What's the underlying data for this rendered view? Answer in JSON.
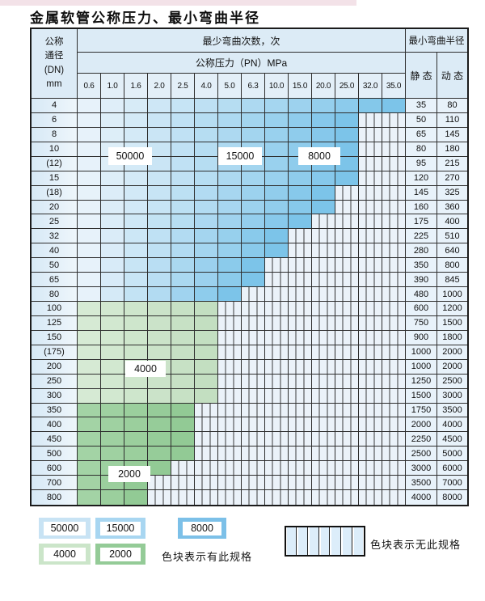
{
  "title": "金属软管公称压力、最小弯曲半径",
  "table": {
    "header": {
      "dn_lines": [
        "公称",
        "通径",
        "(DN)",
        "mm"
      ],
      "bend_cycles_label": "最少弯曲次数，次",
      "pressure_label": "公称压力（PN）MPa",
      "radius_label": "最小弯曲半径",
      "static_label": "静 态",
      "dynamic_label": "动 态",
      "pressures": [
        "0.6",
        "1.0",
        "1.6",
        "2.0",
        "2.5",
        "4.0",
        "5.0",
        "6.3",
        "10.0",
        "15.0",
        "20.0",
        "25.0",
        "32.0",
        "35.0"
      ]
    },
    "rows": [
      {
        "dn": "4",
        "max_pn": "35.0",
        "band": "blue",
        "static": "35",
        "dynamic": "80"
      },
      {
        "dn": "6",
        "max_pn": "25.0",
        "band": "blue",
        "static": "50",
        "dynamic": "110"
      },
      {
        "dn": "8",
        "max_pn": "25.0",
        "band": "blue",
        "static": "65",
        "dynamic": "145"
      },
      {
        "dn": "10",
        "max_pn": "25.0",
        "band": "blue",
        "static": "80",
        "dynamic": "180"
      },
      {
        "dn": "(12)",
        "max_pn": "25.0",
        "band": "blue",
        "static": "95",
        "dynamic": "215"
      },
      {
        "dn": "15",
        "max_pn": "25.0",
        "band": "blue",
        "static": "120",
        "dynamic": "270"
      },
      {
        "dn": "(18)",
        "max_pn": "20.0",
        "band": "blue",
        "static": "145",
        "dynamic": "325"
      },
      {
        "dn": "20",
        "max_pn": "20.0",
        "band": "blue",
        "static": "160",
        "dynamic": "360"
      },
      {
        "dn": "25",
        "max_pn": "15.0",
        "band": "blue",
        "static": "175",
        "dynamic": "400"
      },
      {
        "dn": "32",
        "max_pn": "10.0",
        "band": "blue",
        "static": "225",
        "dynamic": "510"
      },
      {
        "dn": "40",
        "max_pn": "10.0",
        "band": "blue",
        "static": "280",
        "dynamic": "640"
      },
      {
        "dn": "50",
        "max_pn": "6.3",
        "band": "blue",
        "static": "350",
        "dynamic": "800"
      },
      {
        "dn": "65",
        "max_pn": "6.3",
        "band": "blue",
        "static": "390",
        "dynamic": "845"
      },
      {
        "dn": "80",
        "max_pn": "5.0",
        "band": "blue",
        "static": "480",
        "dynamic": "1000"
      },
      {
        "dn": "100",
        "max_pn": "4.0",
        "band": "green4000",
        "static": "600",
        "dynamic": "1200"
      },
      {
        "dn": "125",
        "max_pn": "4.0",
        "band": "green4000",
        "static": "750",
        "dynamic": "1500"
      },
      {
        "dn": "150",
        "max_pn": "4.0",
        "band": "green4000",
        "static": "900",
        "dynamic": "1800"
      },
      {
        "dn": "(175)",
        "max_pn": "4.0",
        "band": "green4000",
        "static": "1000",
        "dynamic": "2000"
      },
      {
        "dn": "200",
        "max_pn": "4.0",
        "band": "green4000",
        "static": "1000",
        "dynamic": "2000"
      },
      {
        "dn": "250",
        "max_pn": "4.0",
        "band": "green4000",
        "static": "1250",
        "dynamic": "2500"
      },
      {
        "dn": "300",
        "max_pn": "4.0",
        "band": "green4000",
        "static": "1500",
        "dynamic": "3000"
      },
      {
        "dn": "350",
        "max_pn": "2.5",
        "band": "green2000",
        "static": "1750",
        "dynamic": "3500"
      },
      {
        "dn": "400",
        "max_pn": "2.5",
        "band": "green2000",
        "static": "2000",
        "dynamic": "4000"
      },
      {
        "dn": "450",
        "max_pn": "2.5",
        "band": "green2000",
        "static": "2250",
        "dynamic": "4500"
      },
      {
        "dn": "500",
        "max_pn": "2.5",
        "band": "green2000",
        "static": "2500",
        "dynamic": "5000"
      },
      {
        "dn": "600",
        "max_pn": "2.0",
        "band": "green2000",
        "static": "3000",
        "dynamic": "6000"
      },
      {
        "dn": "700",
        "max_pn": "1.6",
        "band": "green2000",
        "static": "3500",
        "dynamic": "7000"
      },
      {
        "dn": "800",
        "max_pn": "1.6",
        "band": "green2000",
        "static": "4000",
        "dynamic": "8000"
      }
    ]
  },
  "band_labels": [
    {
      "id": "50000",
      "text": "50000"
    },
    {
      "id": "15000",
      "text": "15000"
    },
    {
      "id": "8000",
      "text": "8000"
    },
    {
      "id": "4000",
      "text": "4000"
    },
    {
      "id": "2000",
      "text": "2000"
    }
  ],
  "colors": {
    "blue_light": "#e7f2fa",
    "blue_dark": "#7cc4e9",
    "green4000_light": "#d6ead4",
    "green4000_dark": "#c3dfc1",
    "green2000_light": "#a3d3a5",
    "green2000_dark": "#92ca95",
    "no_spec_bg": "#ebf2f9",
    "legend_50000": "#c8e3f4",
    "legend_15000": "#a8d6f1",
    "legend_8000": "#7cc0e8",
    "legend_4000": "#cbe5c9",
    "legend_2000": "#94cb97"
  },
  "legend": {
    "items": [
      {
        "value": "50000",
        "color_key": "legend_50000"
      },
      {
        "value": "15000",
        "color_key": "legend_15000"
      },
      {
        "value": "8000",
        "color_key": "legend_8000"
      },
      {
        "value": "4000",
        "color_key": "legend_4000"
      },
      {
        "value": "2000",
        "color_key": "legend_2000"
      }
    ],
    "has_spec_label": "色块表示有此规格",
    "no_spec_label": "色块表示无此规格"
  }
}
